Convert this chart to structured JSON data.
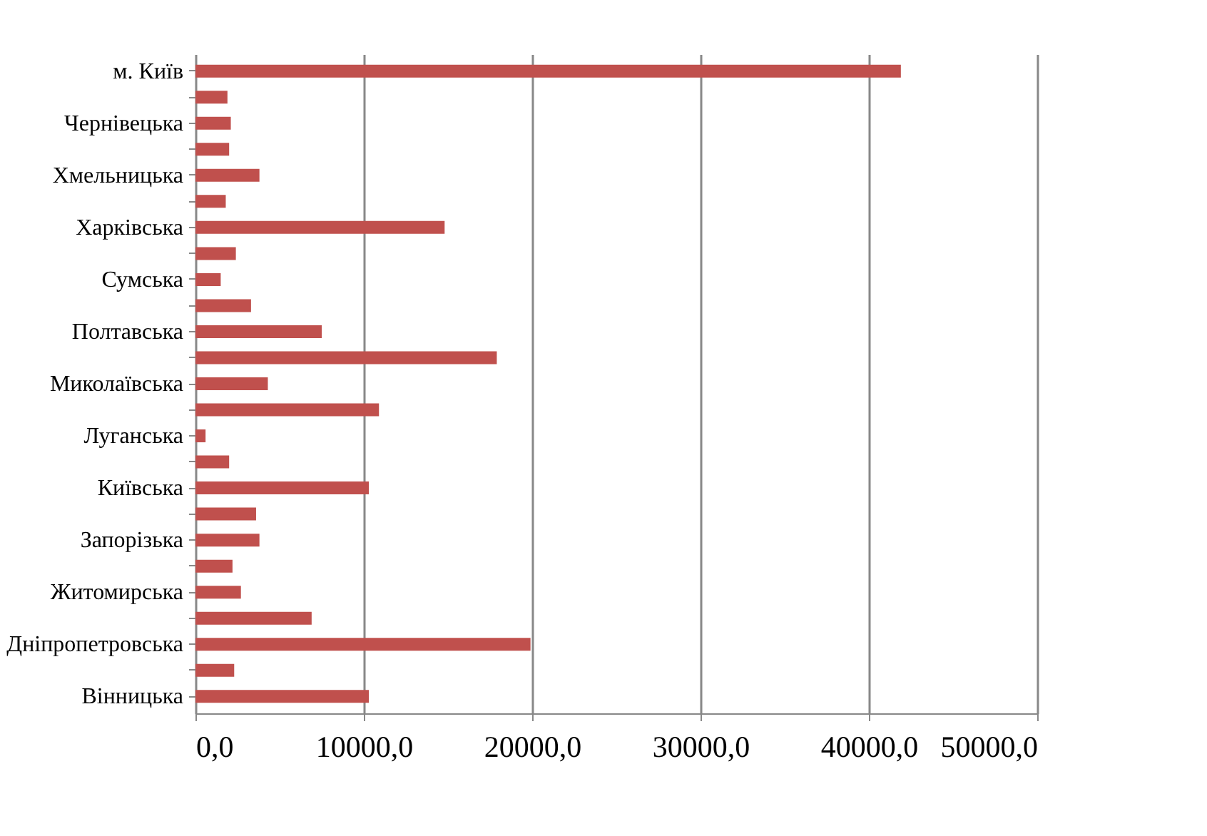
{
  "chart_data": {
    "type": "bar",
    "orientation": "horizontal",
    "categories": [
      "м. Київ",
      null,
      "Чернівецька",
      null,
      "Хмельницька",
      null,
      "Харківська",
      null,
      "Сумська",
      null,
      "Полтавська",
      null,
      "Миколаївська",
      null,
      "Луганська",
      null,
      "Київська",
      null,
      "Запорізька",
      null,
      "Житомирська",
      null,
      "Дніпропетровська",
      null,
      "Вінницька"
    ],
    "values": [
      41900,
      1900,
      2100,
      2000,
      3800,
      1800,
      14800,
      2400,
      1500,
      3300,
      7500,
      17900,
      4300,
      10900,
      600,
      2000,
      10300,
      3600,
      3800,
      2200,
      2700,
      6900,
      19900,
      2300,
      10300
    ],
    "color": "#c0504d",
    "xlim": [
      0,
      50000
    ],
    "xticks": [
      {
        "value": 0,
        "label": "0,0"
      },
      {
        "value": 10000,
        "label": "10000,0"
      },
      {
        "value": 20000,
        "label": "20000,0"
      },
      {
        "value": 30000,
        "label": "30000,0"
      },
      {
        "value": 40000,
        "label": "40000,0"
      },
      {
        "value": 50000,
        "label": "50000,0"
      }
    ],
    "grid": "x"
  }
}
